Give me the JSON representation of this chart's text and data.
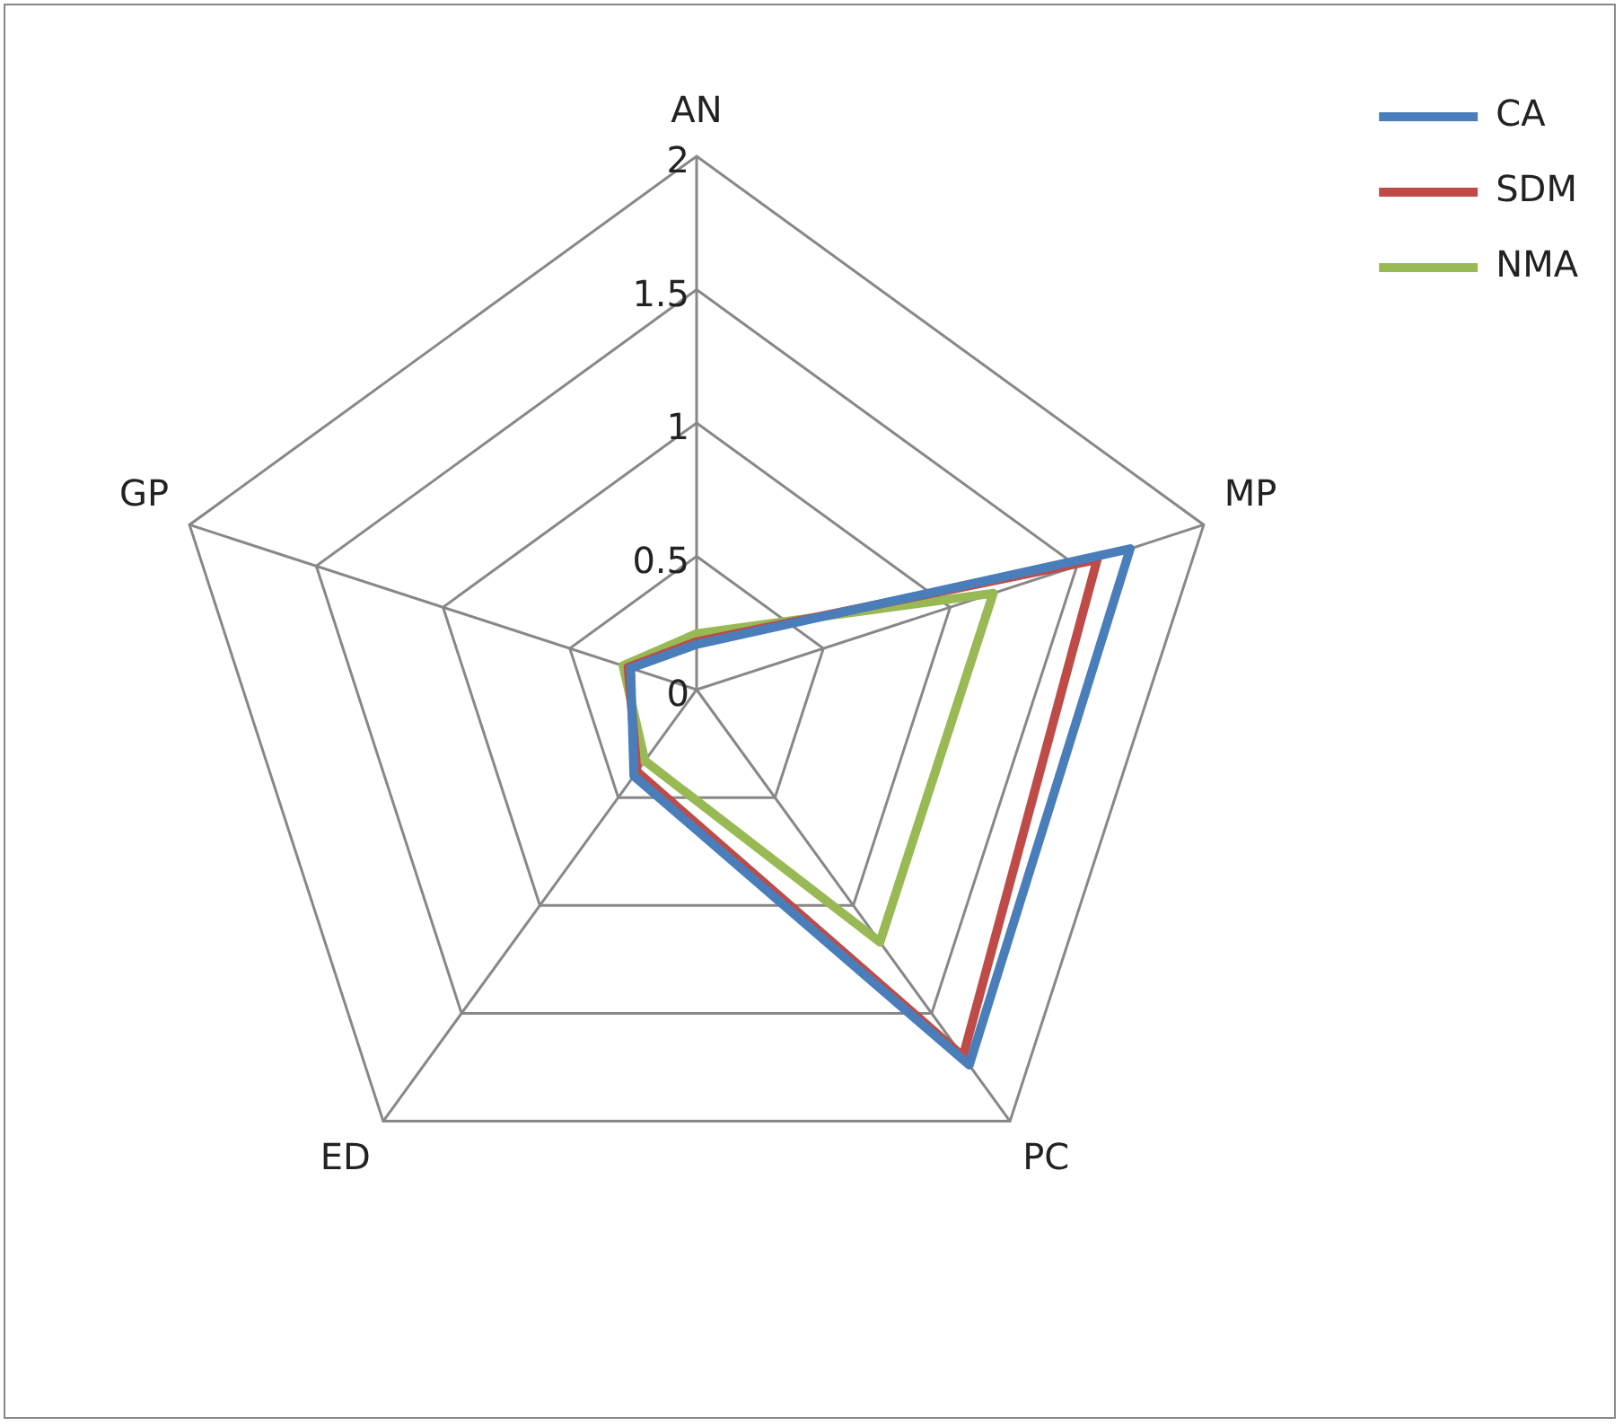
{
  "chart_data": {
    "type": "radar",
    "categories": [
      "AN",
      "MP",
      "PC",
      "ED",
      "GP"
    ],
    "series": [
      {
        "name": "CA",
        "color": "#4a7ebb",
        "values": [
          0.17,
          1.71,
          1.74,
          0.4,
          0.26
        ]
      },
      {
        "name": "SDM",
        "color": "#be4b48",
        "values": [
          0.18,
          1.58,
          1.7,
          0.38,
          0.27
        ]
      },
      {
        "name": "NMA",
        "color": "#98b954",
        "values": [
          0.21,
          1.17,
          1.17,
          0.33,
          0.29
        ]
      }
    ],
    "ylim": [
      0,
      2
    ],
    "yticks": [
      0,
      0.5,
      1,
      1.5,
      2
    ],
    "grid": true,
    "legend": "top right",
    "marker": "none"
  }
}
